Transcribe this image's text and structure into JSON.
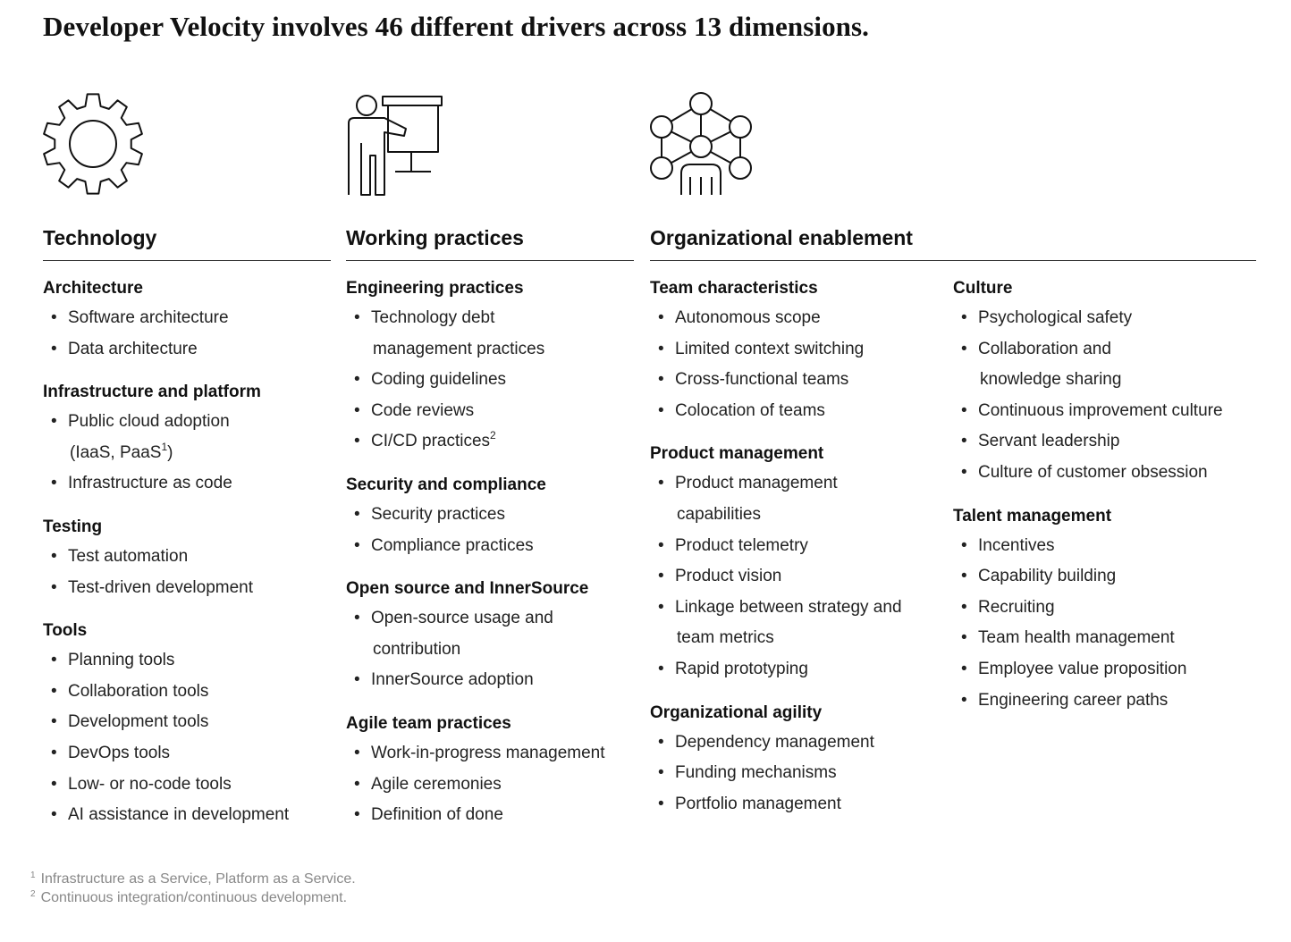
{
  "title": "Developer Velocity involves 46 different drivers across 13 dimensions.",
  "pillars": [
    {
      "label": "Technology",
      "icon": "gear-icon"
    },
    {
      "label": "Working practices",
      "icon": "presenter-icon"
    },
    {
      "label": "Organizational enablement",
      "icon": "network-people-icon"
    }
  ],
  "columns": [
    {
      "groups": [
        {
          "title": "Architecture",
          "items": [
            {
              "text": "Software architecture"
            },
            {
              "text": "Data architecture"
            }
          ]
        },
        {
          "title": "Infrastructure and platform",
          "items": [
            {
              "text": "Public cloud adoption",
              "line2": "(IaaS, PaaS",
              "sup": "1",
              "after": ")"
            },
            {
              "text": "Infrastructure as code"
            }
          ]
        },
        {
          "title": "Testing",
          "items": [
            {
              "text": "Test automation"
            },
            {
              "text": "Test-driven development"
            }
          ]
        },
        {
          "title": "Tools",
          "items": [
            {
              "text": "Planning tools"
            },
            {
              "text": "Collaboration tools"
            },
            {
              "text": "Development tools"
            },
            {
              "text": "DevOps tools"
            },
            {
              "text": "Low- or no-code tools"
            },
            {
              "text": "AI assistance in development"
            }
          ]
        }
      ]
    },
    {
      "groups": [
        {
          "title": "Engineering practices",
          "items": [
            {
              "text": "Technology debt",
              "line2": "management practices"
            },
            {
              "text": "Coding guidelines"
            },
            {
              "text": "Code reviews"
            },
            {
              "text": "CI/CD practices",
              "sup": "2"
            }
          ]
        },
        {
          "title": "Security and compliance",
          "items": [
            {
              "text": "Security practices"
            },
            {
              "text": "Compliance practices"
            }
          ]
        },
        {
          "title": "Open source and InnerSource",
          "items": [
            {
              "text": "Open-source usage and",
              "line2": "contribution"
            },
            {
              "text": "InnerSource adoption"
            }
          ]
        },
        {
          "title": "Agile team practices",
          "items": [
            {
              "text": "Work-in-progress management"
            },
            {
              "text": "Agile ceremonies"
            },
            {
              "text": "Definition of done"
            }
          ]
        }
      ]
    },
    {
      "groups": [
        {
          "title": "Team characteristics",
          "items": [
            {
              "text": "Autonomous scope"
            },
            {
              "text": "Limited context switching"
            },
            {
              "text": "Cross-functional teams"
            },
            {
              "text": "Colocation of teams"
            }
          ]
        },
        {
          "title": "Product management",
          "items": [
            {
              "text": "Product management",
              "line2": "capabilities"
            },
            {
              "text": "Product telemetry"
            },
            {
              "text": "Product vision"
            },
            {
              "text": "Linkage between strategy and",
              "line2": "team metrics"
            },
            {
              "text": "Rapid prototyping"
            }
          ]
        },
        {
          "title": "Organizational agility",
          "items": [
            {
              "text": "Dependency management"
            },
            {
              "text": "Funding mechanisms"
            },
            {
              "text": "Portfolio management"
            }
          ]
        }
      ]
    },
    {
      "groups": [
        {
          "title": "Culture",
          "items": [
            {
              "text": "Psychological safety"
            },
            {
              "text": "Collaboration and",
              "line2": "knowledge sharing"
            },
            {
              "text": "Continuous improvement culture"
            },
            {
              "text": "Servant leadership"
            },
            {
              "text": "Culture of customer obsession"
            }
          ]
        },
        {
          "title": "Talent management",
          "items": [
            {
              "text": "Incentives"
            },
            {
              "text": "Capability building"
            },
            {
              "text": "Recruiting"
            },
            {
              "text": "Team health management"
            },
            {
              "text": "Employee value proposition"
            },
            {
              "text": "Engineering career paths"
            }
          ]
        }
      ]
    }
  ],
  "footnotes": [
    {
      "marker": "1",
      "text": "Infrastructure as a Service, Platform as a Service."
    },
    {
      "marker": "2",
      "text": "Continuous integration/continuous development."
    }
  ]
}
